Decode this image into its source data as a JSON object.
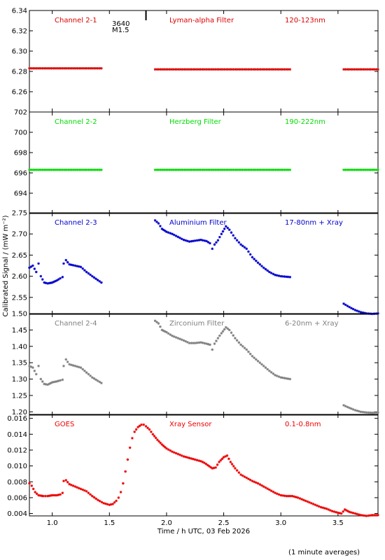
{
  "figure": {
    "xlabel": "Time / h UTC, 03 Feb 2026",
    "ylabel": "Calibrated Signal / (mW m⁻²)",
    "footnote": "(1 minute averages)",
    "marker_label_1": "3640",
    "marker_label_2": "M1.5"
  },
  "chart_data": [
    {
      "type": "scatter",
      "panel": "Channel 2-1",
      "labels": [
        "Channel 2-1",
        "Lyman-alpha Filter",
        "120-123nm"
      ],
      "color": "#dd0000",
      "xlim": [
        0.8,
        3.85
      ],
      "ylim": [
        6.24,
        6.34
      ],
      "yticks": [
        "6.26",
        "6.28",
        "6.30",
        "6.32",
        "6.34"
      ],
      "segments": [
        {
          "x": [
            0.8,
            1.43
          ],
          "y": [
            6.283,
            6.283
          ]
        },
        {
          "x": [
            1.9,
            3.08
          ],
          "y": [
            6.282,
            6.282
          ]
        },
        {
          "x": [
            3.55,
            3.85
          ],
          "y": [
            6.282,
            6.282
          ]
        }
      ]
    },
    {
      "type": "scatter",
      "panel": "Channel 2-2",
      "labels": [
        "Channel 2-2",
        "Herzberg Filter",
        "190-222nm"
      ],
      "color": "#00dd00",
      "xlim": [
        0.8,
        3.85
      ],
      "ylim": [
        692.0,
        702.0
      ],
      "yticks": [
        "694",
        "696",
        "698",
        "700",
        "702"
      ],
      "segments": [
        {
          "x": [
            0.8,
            1.43
          ],
          "y": [
            696.3,
            696.3
          ]
        },
        {
          "x": [
            1.9,
            3.08
          ],
          "y": [
            696.3,
            696.3
          ]
        },
        {
          "x": [
            3.55,
            3.85
          ],
          "y": [
            696.3,
            696.3
          ]
        }
      ]
    },
    {
      "type": "scatter",
      "panel": "Channel 2-3",
      "labels": [
        "Channel 2-3",
        "Aluminium Filter",
        "17-80nm + Xray"
      ],
      "color": "#0000cc",
      "xlim": [
        0.8,
        3.85
      ],
      "ylim": [
        2.51,
        2.75
      ],
      "yticks": [
        "2.55",
        "2.60",
        "2.65",
        "2.70",
        "2.75"
      ],
      "segments": [
        {
          "x": [
            0.8,
            0.83,
            0.86,
            0.88,
            0.9,
            0.93,
            0.96,
            1.0,
            1.04,
            1.07,
            1.09,
            1.1,
            1.12,
            1.15,
            1.2,
            1.25,
            1.3,
            1.35,
            1.43
          ],
          "y": [
            2.62,
            2.625,
            2.61,
            2.63,
            2.6,
            2.585,
            2.583,
            2.585,
            2.59,
            2.595,
            2.598,
            2.63,
            2.638,
            2.628,
            2.625,
            2.622,
            2.61,
            2.6,
            2.585
          ]
        },
        {
          "x": [
            1.9,
            1.93,
            1.96,
            2.0,
            2.05,
            2.1,
            2.15,
            2.2,
            2.25,
            2.3,
            2.35,
            2.38,
            2.4,
            2.42,
            2.45,
            2.48,
            2.52,
            2.55,
            2.6,
            2.65,
            2.7,
            2.75,
            2.8,
            2.85,
            2.9,
            2.95,
            3.0,
            3.08
          ],
          "y": [
            2.732,
            2.725,
            2.712,
            2.705,
            2.7,
            2.693,
            2.686,
            2.682,
            2.684,
            2.686,
            2.683,
            2.678,
            2.665,
            2.675,
            2.685,
            2.7,
            2.718,
            2.71,
            2.69,
            2.675,
            2.665,
            2.645,
            2.632,
            2.62,
            2.61,
            2.603,
            2.6,
            2.598
          ]
        },
        {
          "x": [
            3.55,
            3.6,
            3.65,
            3.7,
            3.75,
            3.8,
            3.85
          ],
          "y": [
            2.535,
            2.527,
            2.52,
            2.515,
            2.512,
            2.511,
            2.512
          ]
        }
      ]
    },
    {
      "type": "scatter",
      "panel": "Channel 2-4",
      "labels": [
        "Channel 2-4",
        "Zirconium Filter",
        "6-20nm + Xray"
      ],
      "color": "#808080",
      "xlim": [
        0.8,
        3.85
      ],
      "ylim": [
        1.19,
        1.5
      ],
      "yticks": [
        "1.20",
        "1.25",
        "1.30",
        "1.35",
        "1.40",
        "1.45",
        "1.50"
      ],
      "segments": [
        {
          "x": [
            0.8,
            0.83,
            0.86,
            0.88,
            0.9,
            0.93,
            0.96,
            1.0,
            1.04,
            1.07,
            1.09,
            1.1,
            1.12,
            1.15,
            1.2,
            1.25,
            1.3,
            1.35,
            1.43
          ],
          "y": [
            1.34,
            1.335,
            1.315,
            1.34,
            1.3,
            1.285,
            1.283,
            1.29,
            1.293,
            1.296,
            1.298,
            1.34,
            1.36,
            1.345,
            1.34,
            1.335,
            1.32,
            1.305,
            1.288
          ]
        },
        {
          "x": [
            1.9,
            1.93,
            1.96,
            2.0,
            2.05,
            2.1,
            2.15,
            2.2,
            2.25,
            2.3,
            2.35,
            2.38,
            2.4,
            2.42,
            2.45,
            2.48,
            2.52,
            2.55,
            2.6,
            2.65,
            2.7,
            2.75,
            2.8,
            2.85,
            2.9,
            2.95,
            3.0,
            3.08
          ],
          "y": [
            1.478,
            1.47,
            1.45,
            1.443,
            1.432,
            1.425,
            1.418,
            1.41,
            1.41,
            1.412,
            1.408,
            1.405,
            1.39,
            1.408,
            1.425,
            1.44,
            1.458,
            1.45,
            1.425,
            1.405,
            1.39,
            1.37,
            1.355,
            1.34,
            1.325,
            1.312,
            1.305,
            1.3
          ]
        },
        {
          "x": [
            3.55,
            3.6,
            3.65,
            3.7,
            3.75,
            3.8,
            3.85
          ],
          "y": [
            1.22,
            1.212,
            1.205,
            1.2,
            1.198,
            1.197,
            1.198
          ]
        }
      ]
    },
    {
      "type": "scatter",
      "panel": "GOES",
      "labels": [
        "GOES",
        "Xray Sensor",
        "0.1-0.8nm"
      ],
      "color": "#ee0000",
      "xlim": [
        0.8,
        3.85
      ],
      "ylim": [
        0.0037,
        0.0165
      ],
      "yticks": [
        "0.004",
        "0.006",
        "0.008",
        "0.010",
        "0.012",
        "0.014",
        "0.016"
      ],
      "segments": [
        {
          "x": [
            0.8,
            0.82,
            0.85,
            0.88,
            0.92,
            0.96,
            1.0,
            1.04,
            1.07,
            1.09,
            1.1,
            1.12,
            1.15,
            1.2,
            1.25,
            1.3,
            1.35,
            1.4,
            1.45,
            1.5,
            1.53,
            1.56,
            1.58,
            1.6,
            1.62,
            1.64,
            1.66,
            1.68,
            1.7,
            1.72,
            1.75,
            1.78,
            1.8,
            1.82,
            1.85,
            1.88,
            1.92,
            1.96,
            2.0,
            2.05,
            2.1,
            2.15,
            2.2,
            2.25,
            2.3,
            2.33,
            2.36,
            2.4,
            2.43,
            2.46,
            2.5,
            2.53,
            2.56,
            2.6,
            2.65,
            2.7,
            2.75,
            2.8,
            2.85,
            2.9,
            2.95,
            3.0,
            3.05,
            3.1,
            3.15,
            3.2,
            3.25,
            3.3,
            3.35,
            3.4,
            3.45,
            3.5,
            3.53,
            3.56,
            3.6,
            3.65,
            3.7,
            3.75,
            3.8,
            3.85
          ],
          "y": [
            0.0078,
            0.0075,
            0.0067,
            0.0063,
            0.0062,
            0.0062,
            0.0063,
            0.0063,
            0.0064,
            0.0066,
            0.0081,
            0.0082,
            0.0077,
            0.0074,
            0.0071,
            0.0068,
            0.0062,
            0.0057,
            0.0053,
            0.0051,
            0.0052,
            0.0056,
            0.006,
            0.0067,
            0.0078,
            0.0093,
            0.0108,
            0.0123,
            0.0135,
            0.0143,
            0.0149,
            0.0152,
            0.0152,
            0.015,
            0.0146,
            0.014,
            0.0133,
            0.0127,
            0.0122,
            0.0118,
            0.0115,
            0.0112,
            0.011,
            0.0108,
            0.0106,
            0.0104,
            0.0101,
            0.0097,
            0.0098,
            0.0105,
            0.0111,
            0.0113,
            0.0105,
            0.0097,
            0.0089,
            0.0085,
            0.0081,
            0.0078,
            0.0074,
            0.007,
            0.0066,
            0.0063,
            0.0062,
            0.0062,
            0.006,
            0.0057,
            0.0054,
            0.0051,
            0.0048,
            0.0046,
            0.0043,
            0.0041,
            0.004,
            0.0045,
            0.0042,
            0.004,
            0.0038,
            0.0037,
            0.0038,
            0.0038
          ]
        }
      ]
    }
  ],
  "x_axis": {
    "ticks": [
      1.0,
      1.5,
      2.0,
      2.5,
      3.0,
      3.5
    ],
    "tick_labels": [
      "1.0",
      "1.5",
      "2.0",
      "2.5",
      "3.0",
      "3.5"
    ],
    "event_marker_x": 1.82
  }
}
